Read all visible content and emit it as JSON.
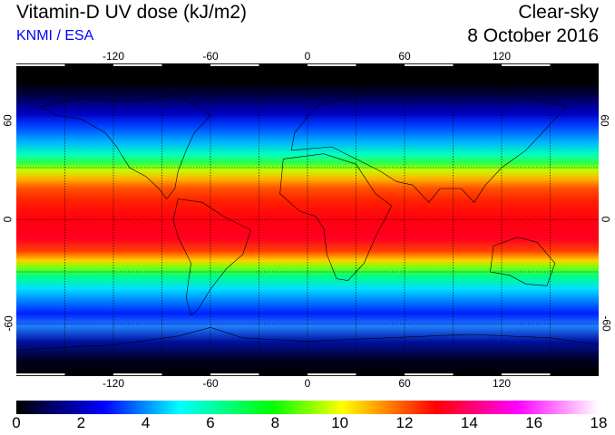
{
  "header": {
    "title": "Vitamin-D UV dose (kJ/m2)",
    "credit": "KNMI / ESA",
    "condition": "Clear-sky",
    "date": "8 October 2016"
  },
  "map": {
    "lon_ticks": [
      "-120",
      "-60",
      "0",
      "60",
      "120"
    ],
    "lat_ticks": [
      "60",
      "0",
      "-60"
    ],
    "lon_range": [
      -180,
      180
    ],
    "lat_range": [
      -90,
      90
    ]
  },
  "colorbar": {
    "labels": [
      "0",
      "2",
      "4",
      "6",
      "8",
      "10",
      "12",
      "14",
      "16",
      "18"
    ],
    "min": 0,
    "max": 18,
    "colors": [
      "#000000",
      "#0000ff",
      "#00ffff",
      "#00ff00",
      "#ffff00",
      "#ff0000",
      "#ff00ff",
      "#ffffff"
    ]
  }
}
